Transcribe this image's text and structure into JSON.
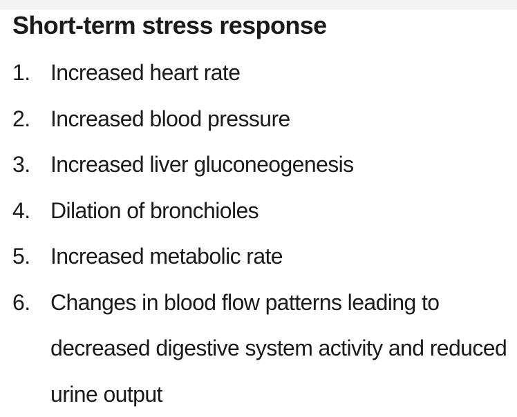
{
  "document": {
    "title": "Short-term stress response",
    "items": [
      {
        "number": "1.",
        "text": "Increased heart rate"
      },
      {
        "number": "2.",
        "text": "Increased blood pressure"
      },
      {
        "number": "3.",
        "text": "Increased liver gluconeogenesis"
      },
      {
        "number": "4.",
        "text": "Dilation of bronchioles"
      },
      {
        "number": "5.",
        "text": "Increased metabolic rate"
      },
      {
        "number": "6.",
        "text": "Changes in blood flow patterns leading to decreased digestive system activity and reduced urine output"
      }
    ]
  }
}
